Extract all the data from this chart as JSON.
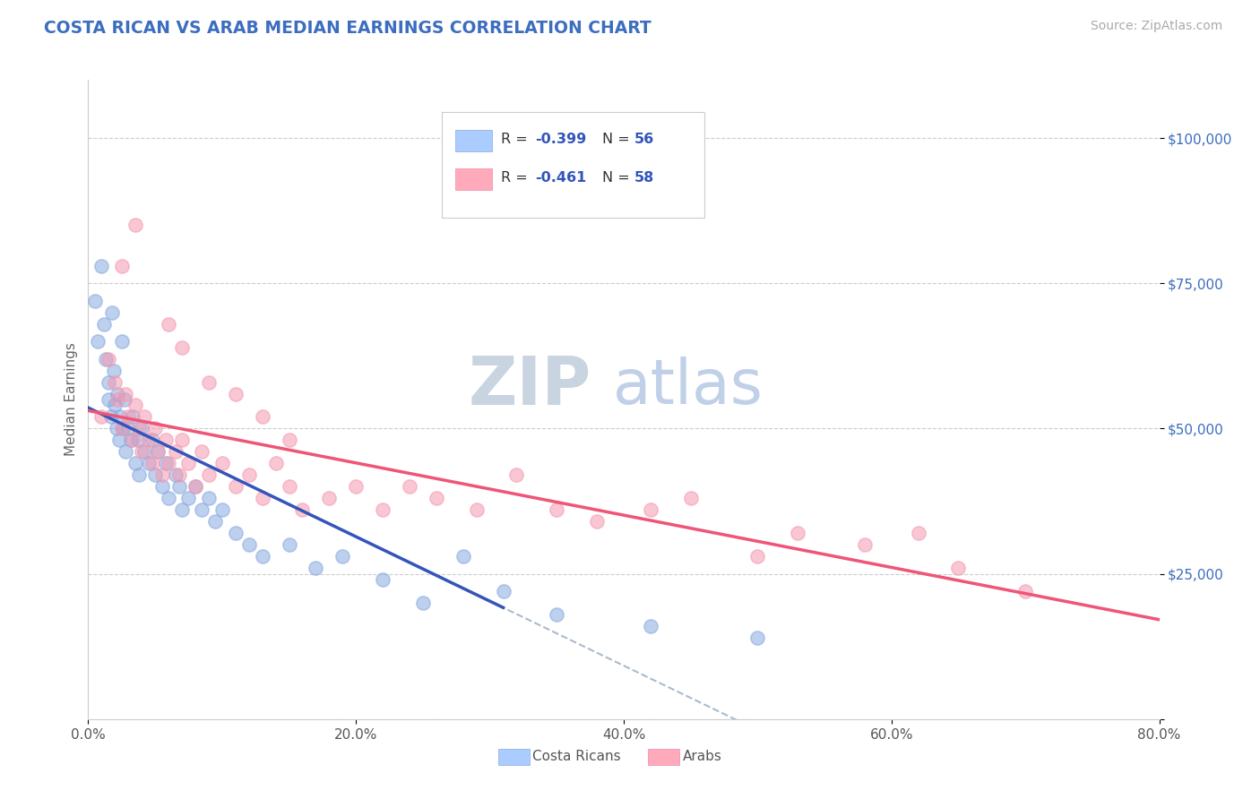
{
  "title": "COSTA RICAN VS ARAB MEDIAN EARNINGS CORRELATION CHART",
  "title_color": "#3c6dbf",
  "source_text": "Source: ZipAtlas.com",
  "source_color": "#aaaaaa",
  "ylabel": "Median Earnings",
  "ylabel_color": "#666666",
  "xlim": [
    0.0,
    0.8
  ],
  "ylim": [
    0,
    110000
  ],
  "xtick_labels": [
    "0.0%",
    "20.0%",
    "40.0%",
    "60.0%",
    "80.0%"
  ],
  "xtick_values": [
    0.0,
    0.2,
    0.4,
    0.6,
    0.8
  ],
  "ytick_values": [
    0,
    25000,
    50000,
    75000,
    100000
  ],
  "ytick_labels": [
    "",
    "$25,000",
    "$50,000",
    "$75,000",
    "$100,000"
  ],
  "ytick_color": "#3c6dbf",
  "grid_color": "#cccccc",
  "background_color": "#ffffff",
  "legend_color1": "#aaccff",
  "legend_color2": "#ffaabb",
  "blue_color": "#88aae0",
  "pink_color": "#f599b0",
  "blue_line_color": "#3355bb",
  "pink_line_color": "#ee5577",
  "dashed_line_color": "#aabbcc",
  "watermark_zip": "ZIP",
  "watermark_atlas": "atlas",
  "watermark_zip_color": "#c8d4e0",
  "watermark_atlas_color": "#c0d0e8",
  "costa_rican_x": [
    0.005,
    0.007,
    0.01,
    0.012,
    0.013,
    0.015,
    0.015,
    0.017,
    0.018,
    0.019,
    0.02,
    0.021,
    0.022,
    0.023,
    0.024,
    0.025,
    0.026,
    0.027,
    0.028,
    0.03,
    0.032,
    0.033,
    0.035,
    0.037,
    0.038,
    0.04,
    0.042,
    0.045,
    0.048,
    0.05,
    0.052,
    0.055,
    0.058,
    0.06,
    0.065,
    0.068,
    0.07,
    0.075,
    0.08,
    0.085,
    0.09,
    0.095,
    0.1,
    0.11,
    0.12,
    0.13,
    0.15,
    0.17,
    0.19,
    0.22,
    0.25,
    0.28,
    0.31,
    0.35,
    0.42,
    0.5
  ],
  "costa_rican_y": [
    72000,
    65000,
    78000,
    68000,
    62000,
    58000,
    55000,
    52000,
    70000,
    60000,
    54000,
    50000,
    56000,
    48000,
    52000,
    65000,
    50000,
    55000,
    46000,
    50000,
    48000,
    52000,
    44000,
    48000,
    42000,
    50000,
    46000,
    44000,
    48000,
    42000,
    46000,
    40000,
    44000,
    38000,
    42000,
    40000,
    36000,
    38000,
    40000,
    36000,
    38000,
    34000,
    36000,
    32000,
    30000,
    28000,
    30000,
    26000,
    28000,
    24000,
    20000,
    28000,
    22000,
    18000,
    16000,
    14000
  ],
  "arab_x": [
    0.01,
    0.015,
    0.02,
    0.022,
    0.025,
    0.028,
    0.03,
    0.033,
    0.035,
    0.038,
    0.04,
    0.042,
    0.045,
    0.048,
    0.05,
    0.052,
    0.055,
    0.058,
    0.06,
    0.065,
    0.068,
    0.07,
    0.075,
    0.08,
    0.085,
    0.09,
    0.1,
    0.11,
    0.12,
    0.13,
    0.14,
    0.15,
    0.16,
    0.18,
    0.2,
    0.22,
    0.24,
    0.26,
    0.29,
    0.32,
    0.35,
    0.38,
    0.42,
    0.45,
    0.5,
    0.53,
    0.58,
    0.62,
    0.65,
    0.7,
    0.035,
    0.025,
    0.06,
    0.07,
    0.09,
    0.11,
    0.13,
    0.15
  ],
  "arab_y": [
    52000,
    62000,
    58000,
    55000,
    50000,
    56000,
    52000,
    48000,
    54000,
    50000,
    46000,
    52000,
    48000,
    44000,
    50000,
    46000,
    42000,
    48000,
    44000,
    46000,
    42000,
    48000,
    44000,
    40000,
    46000,
    42000,
    44000,
    40000,
    42000,
    38000,
    44000,
    40000,
    36000,
    38000,
    40000,
    36000,
    40000,
    38000,
    36000,
    42000,
    36000,
    34000,
    36000,
    38000,
    28000,
    32000,
    30000,
    32000,
    26000,
    22000,
    85000,
    78000,
    68000,
    64000,
    58000,
    56000,
    52000,
    48000
  ]
}
